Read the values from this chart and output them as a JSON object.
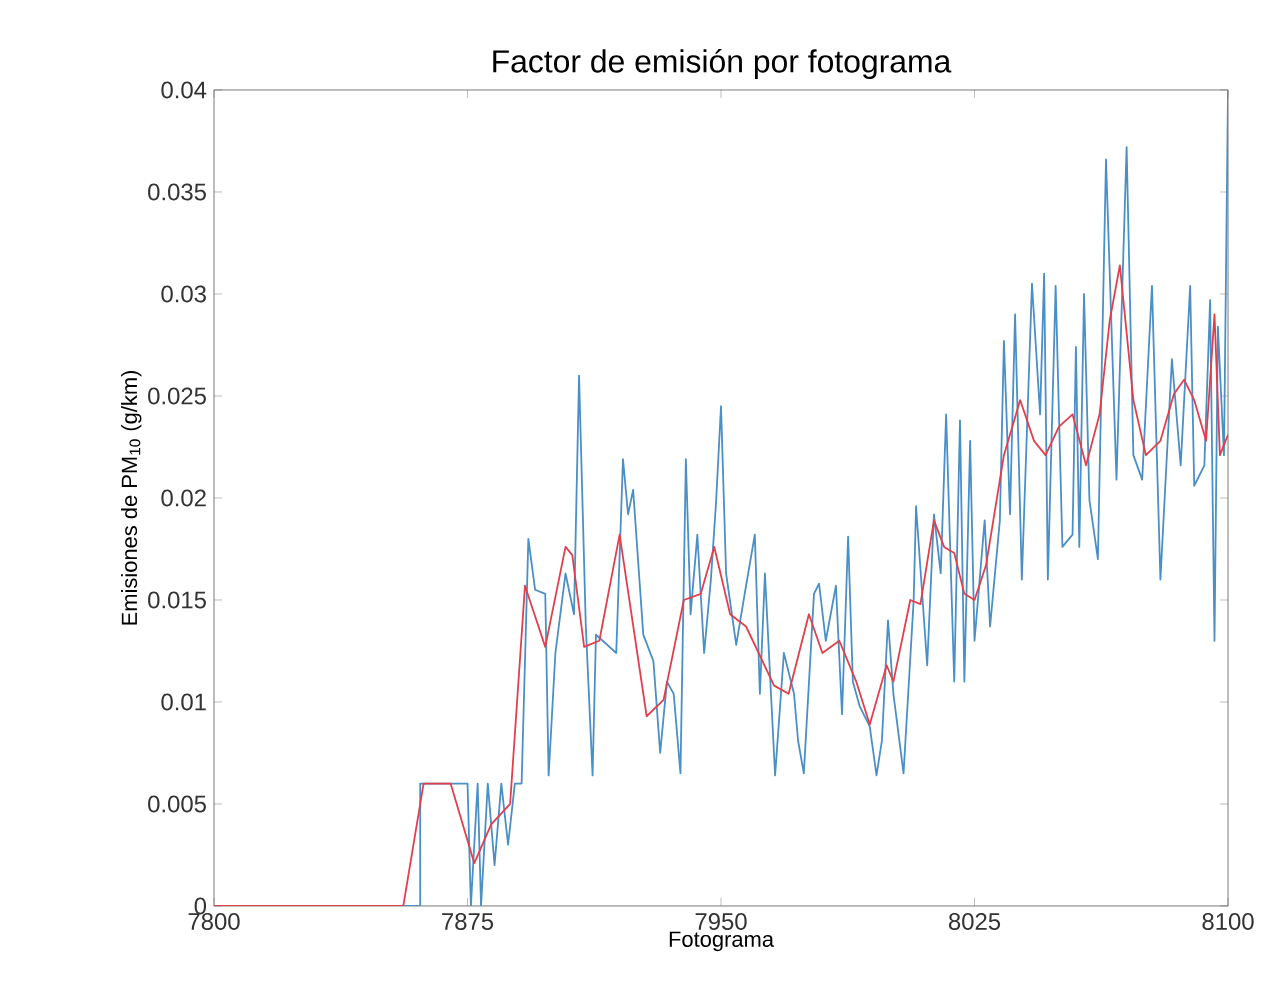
{
  "chart_data": {
    "type": "line",
    "title": "Factor de emisión por fotograma",
    "xlabel": "Fotograma",
    "ylabel": "Emisiones de PM$_{10}$ (g/km)",
    "xlim": [
      7800,
      8100
    ],
    "xticks": [
      7800,
      7875,
      7950,
      8025,
      8100
    ],
    "ylim": [
      0,
      0.04
    ],
    "yticks": [
      0,
      0.005,
      0.01,
      0.015,
      0.02,
      0.025,
      0.03,
      0.035,
      0.04
    ],
    "grid": false,
    "marker": "none",
    "line_style": "solid",
    "series": [
      {
        "color": "#4a8fc6",
        "x": [
          7800,
          7861,
          7861,
          7875,
          7876,
          7878,
          7879,
          7881,
          7883,
          7885,
          7887,
          7889,
          7891,
          7893,
          7895,
          7898,
          7899,
          7901,
          7904,
          7906.5,
          7908,
          7910,
          7912,
          7913,
          7919,
          7921,
          7922.5,
          7924,
          7927,
          7930,
          7932,
          7934,
          7936,
          7938,
          7939.6,
          7941,
          7943,
          7945,
          7947,
          7948.5,
          7950,
          7951.5,
          7954.5,
          7957,
          7960,
          7961.5,
          7963,
          7966,
          7968.6,
          7971.6,
          7972.8,
          7974.5,
          7977.5,
          7979,
          7981,
          7984,
          7985.8,
          7987.6,
          7989,
          7991,
          7994,
          7996,
          7997.6,
          7999.4,
          8001,
          8004,
          8007,
          8007.7,
          8011,
          8013,
          8015,
          8016.6,
          8019,
          8020.7,
          8022,
          8023.7,
          8025,
          8028,
          8029.6,
          8032.5,
          8033.7,
          8035.5,
          8037,
          8039,
          8042,
          8044.4,
          8045.6,
          8046.7,
          8049,
          8051,
          8054,
          8055,
          8056,
          8057.4,
          8059,
          8061.5,
          8063.9,
          8067,
          8070,
          8072,
          8074.6,
          8077.5,
          8080,
          8083.4,
          8086,
          8088.8,
          8090,
          8093,
          8094.7,
          8096,
          8097,
          8098.8,
          8100
        ],
        "values": [
          0,
          0,
          0.006,
          0.006,
          0,
          0.006,
          0,
          0.006,
          0.002,
          0.006,
          0.003,
          0.006,
          0.006,
          0.018,
          0.0155,
          0.0153,
          0.0064,
          0.0124,
          0.0163,
          0.0143,
          0.026,
          0.0137,
          0.0064,
          0.0133,
          0.0124,
          0.0219,
          0.0192,
          0.0204,
          0.0133,
          0.012,
          0.0075,
          0.011,
          0.0104,
          0.0065,
          0.0219,
          0.0143,
          0.0182,
          0.0124,
          0.016,
          0.0197,
          0.0245,
          0.0163,
          0.0128,
          0.0153,
          0.0182,
          0.0104,
          0.0163,
          0.0064,
          0.0124,
          0.0104,
          0.0081,
          0.0065,
          0.0153,
          0.0158,
          0.013,
          0.0157,
          0.0094,
          0.0181,
          0.011,
          0.0098,
          0.0088,
          0.0064,
          0.0081,
          0.014,
          0.0104,
          0.0065,
          0.015,
          0.0196,
          0.0118,
          0.0192,
          0.0163,
          0.0241,
          0.011,
          0.0238,
          0.011,
          0.0228,
          0.013,
          0.0189,
          0.0137,
          0.0189,
          0.0277,
          0.0192,
          0.029,
          0.016,
          0.0305,
          0.0241,
          0.031,
          0.016,
          0.0304,
          0.0176,
          0.0182,
          0.0274,
          0.0176,
          0.03,
          0.0199,
          0.017,
          0.0366,
          0.0209,
          0.0372,
          0.0221,
          0.0209,
          0.0304,
          0.016,
          0.0268,
          0.0216,
          0.0304,
          0.0206,
          0.0216,
          0.0297,
          0.013,
          0.0284,
          0.0221,
          0.04
        ]
      },
      {
        "color": "#e0404c",
        "x": [
          7800,
          7856,
          7862,
          7870,
          7877,
          7882,
          7887.6,
          7892,
          7898,
          7904,
          7906,
          7909.5,
          7914,
          7920,
          7928,
          7933,
          7939,
          7944,
          7948,
          7952.7,
          7957.4,
          7965.7,
          7970,
          7976,
          7980,
          7985,
          7990,
          7994,
          7999,
          8001,
          8006,
          8009,
          8013,
          8016,
          8019,
          8022,
          8025,
          8028.4,
          8033.7,
          8038.5,
          8042.6,
          8046,
          8050,
          8054,
          8058,
          8062,
          8065,
          8068,
          8072,
          8075.7,
          8080,
          8084,
          8087,
          8090,
          8093.5,
          8096,
          8097.6,
          8100
        ],
        "values": [
          0,
          0,
          0.006,
          0.006,
          0.0021,
          0.004,
          0.005,
          0.0157,
          0.0127,
          0.0176,
          0.0172,
          0.0127,
          0.013,
          0.0182,
          0.0093,
          0.0101,
          0.015,
          0.0153,
          0.0176,
          0.0143,
          0.0137,
          0.0108,
          0.0104,
          0.0143,
          0.0124,
          0.013,
          0.011,
          0.0089,
          0.0118,
          0.011,
          0.015,
          0.0148,
          0.0189,
          0.0176,
          0.0173,
          0.0153,
          0.015,
          0.0167,
          0.0221,
          0.0248,
          0.0228,
          0.0221,
          0.0235,
          0.0241,
          0.0216,
          0.0241,
          0.0287,
          0.0314,
          0.0248,
          0.0221,
          0.0228,
          0.0251,
          0.0258,
          0.0248,
          0.0228,
          0.029,
          0.0221,
          0.0231
        ]
      }
    ]
  }
}
